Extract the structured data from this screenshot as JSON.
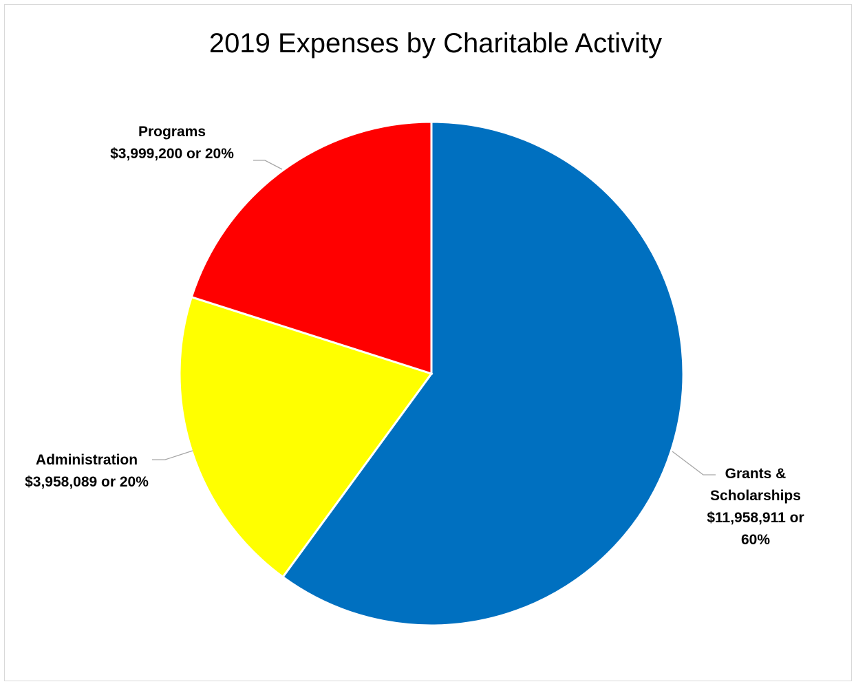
{
  "chart_data": {
    "type": "pie",
    "title": "2019 Expenses by Charitable Activity",
    "slices": [
      {
        "label": "Grants & Scholarships",
        "value": 11958911,
        "percent": 60,
        "color": "#0070C0",
        "label_lines": [
          "Grants &",
          "Scholarships",
          "$11,958,911 or",
          "60%"
        ]
      },
      {
        "label": "Administration",
        "value": 3958089,
        "percent": 20,
        "color": "#FFFF00",
        "label_lines": [
          "Administration",
          "$3,958,089 or 20%"
        ]
      },
      {
        "label": "Programs",
        "value": 3999200,
        "percent": 20,
        "color": "#FF0000",
        "label_lines": [
          "Programs",
          "$3,999,200 or 20%"
        ]
      }
    ],
    "legend": "none",
    "start_angle": "12 o'clock",
    "direction": "clockwise"
  }
}
